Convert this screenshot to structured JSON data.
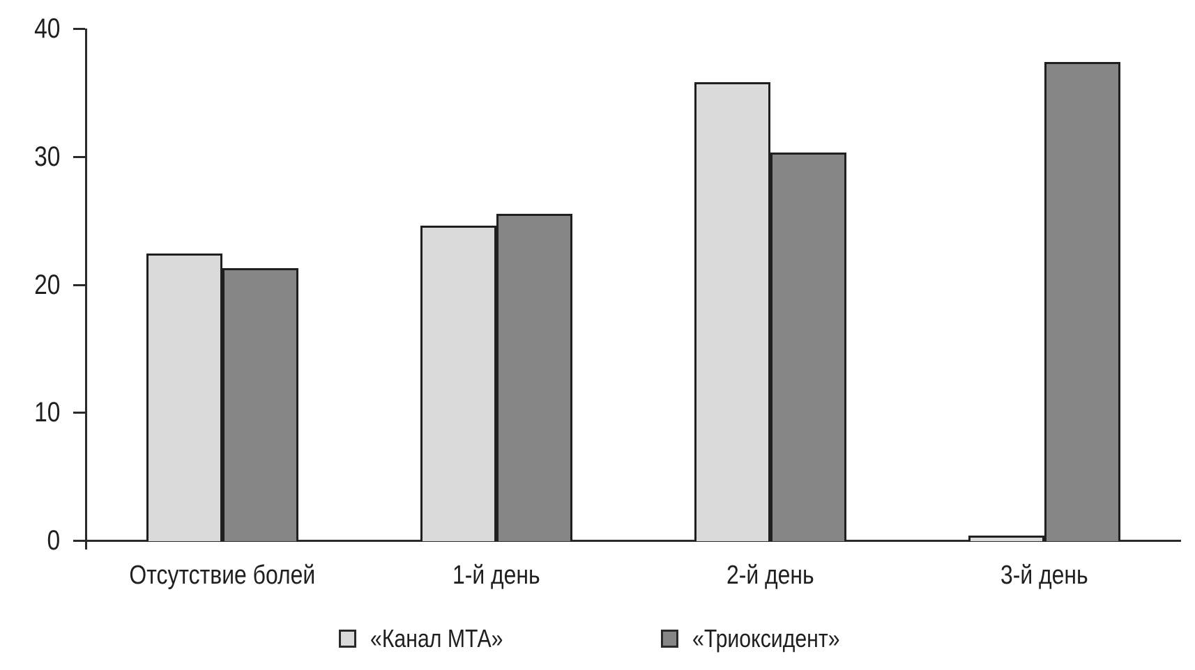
{
  "chart_data": {
    "type": "bar",
    "title": "",
    "xlabel": "",
    "ylabel": "",
    "categories": [
      "Отсутствие болей",
      "1-й день",
      "2-й день",
      "3-й день"
    ],
    "series": [
      {
        "name": "«Канал МТА»",
        "color": "#dadada",
        "values": [
          22.4,
          24.6,
          35.8,
          0.4
        ]
      },
      {
        "name": "«Триоксидент»",
        "color": "#868686",
        "values": [
          21.3,
          25.5,
          30.3,
          37.4
        ]
      }
    ],
    "ylim": [
      0,
      40
    ],
    "yticks": [
      0,
      10,
      20,
      30,
      40
    ],
    "grid": false,
    "legend_position": "bottom",
    "colors": {
      "axis": "#2a2a2a",
      "bar_border": "#1f1f1f",
      "text": "#1f1f1f",
      "background": "#ffffff"
    }
  }
}
